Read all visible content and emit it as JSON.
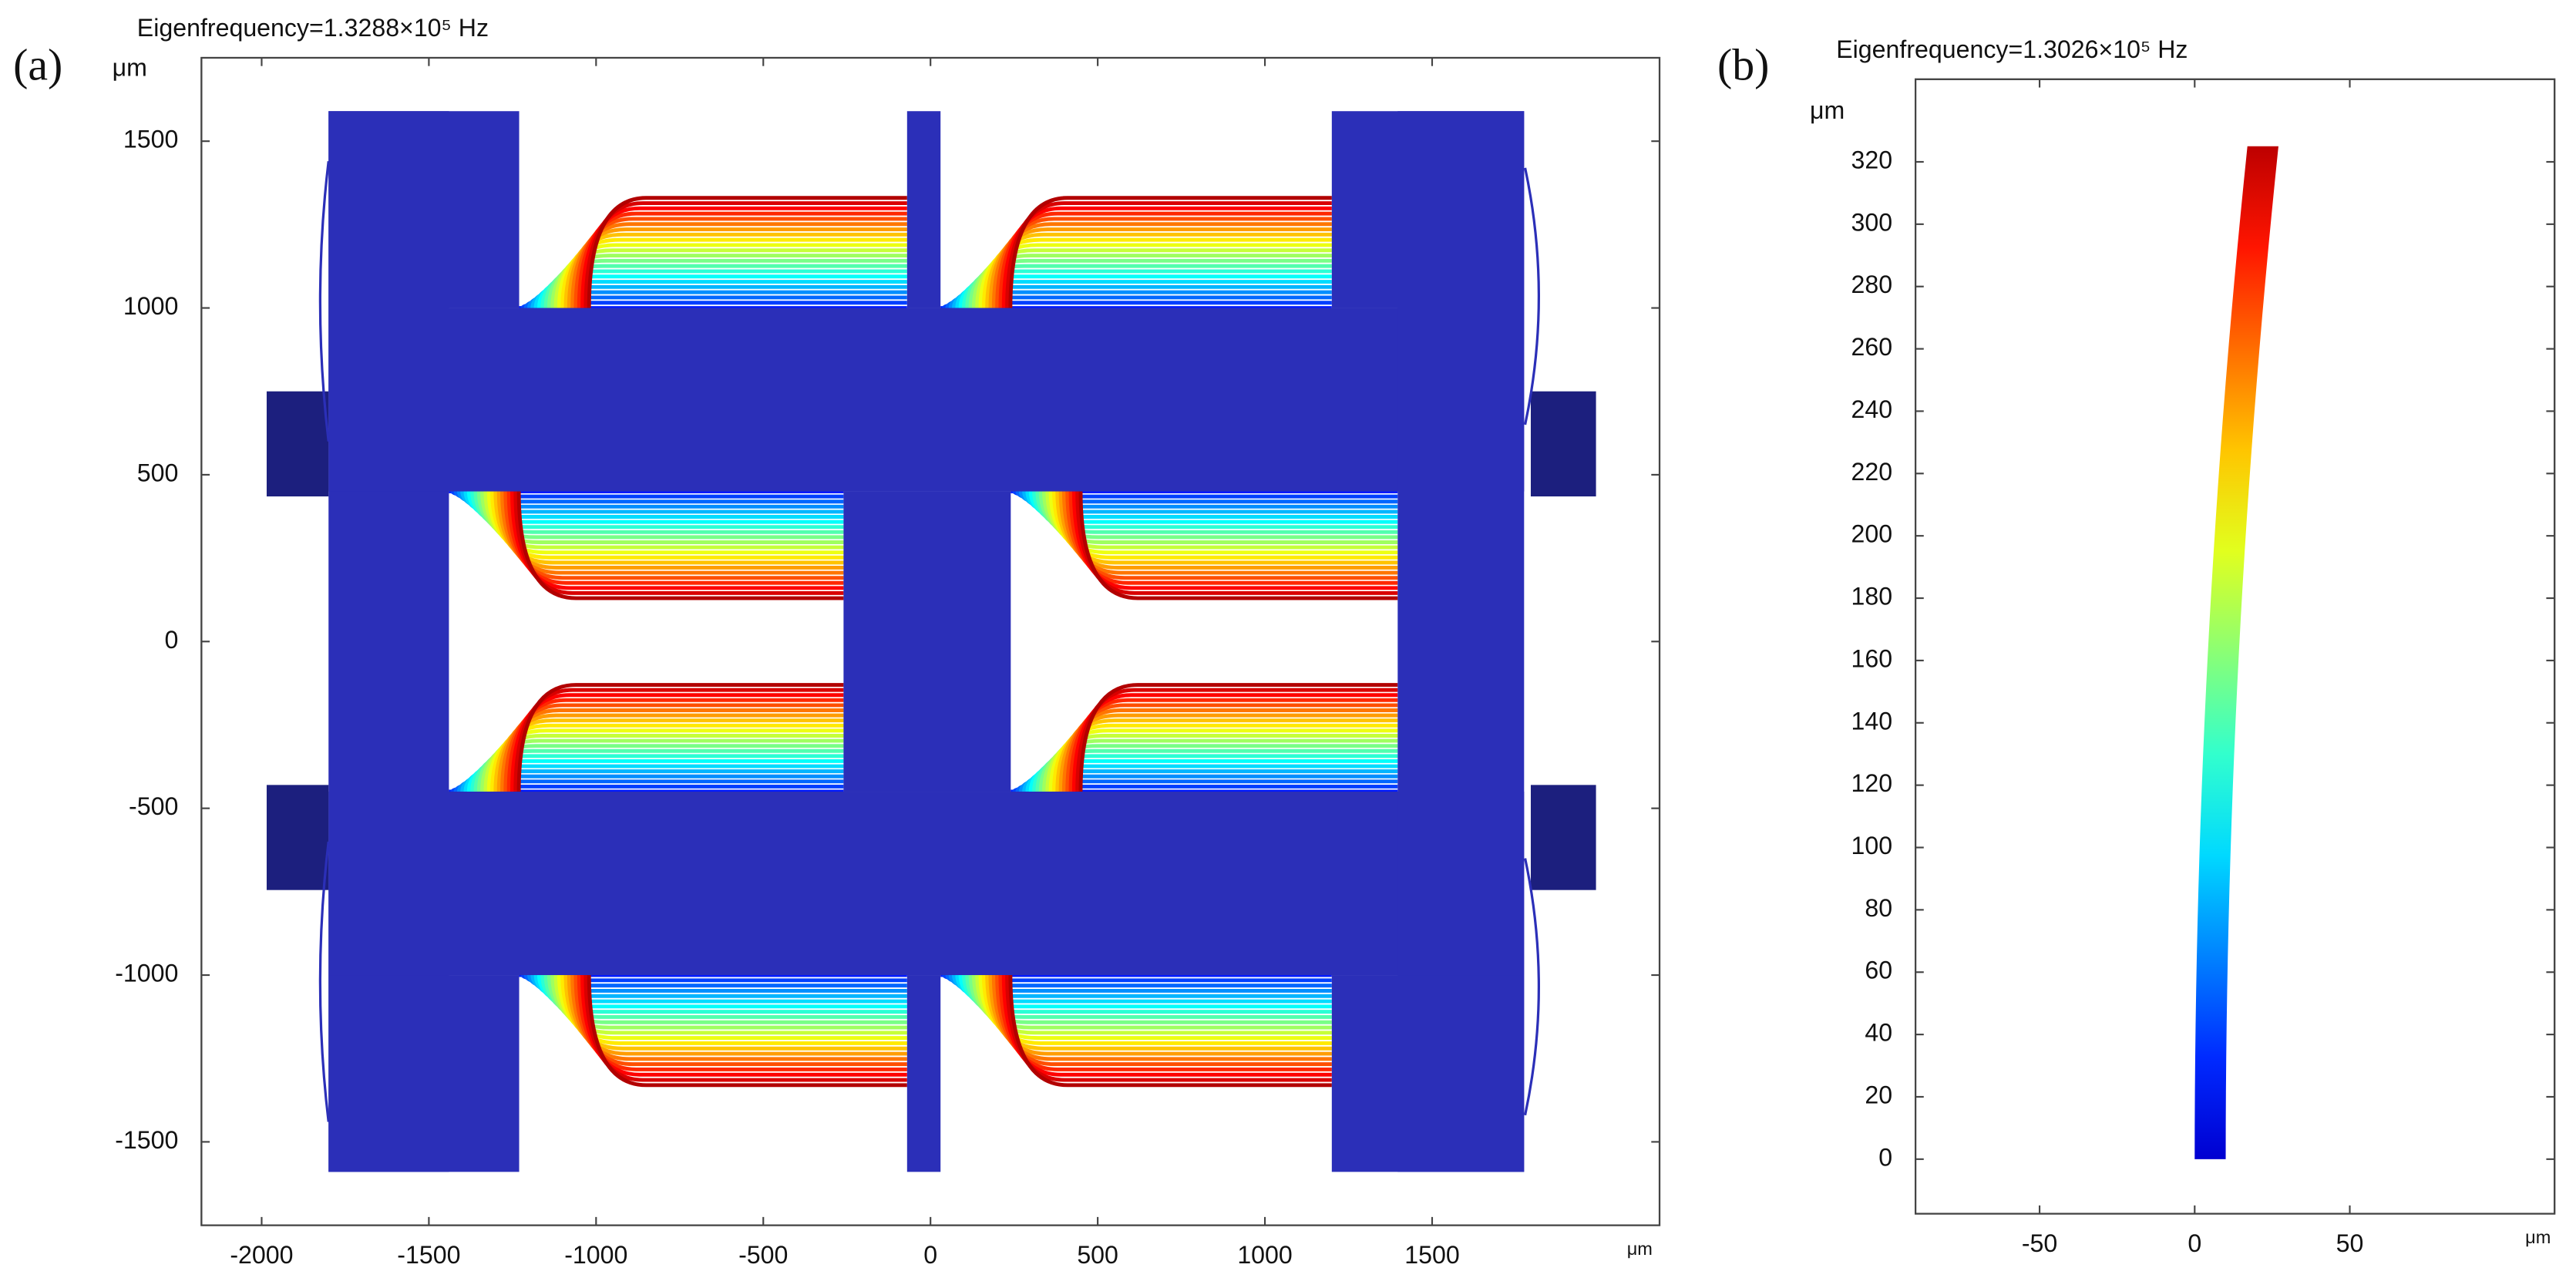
{
  "chart_data": [
    {
      "type": "surface",
      "panel_label": "(a)",
      "title": "Eigenfrequency=1.3288×10⁵ Hz",
      "y_unit": "μm",
      "x_unit": "μm",
      "xlim": [
        -2180,
        2180
      ],
      "ylim": [
        -1750,
        1750
      ],
      "xticks": [
        -2000,
        -1500,
        -1000,
        -500,
        0,
        500,
        1000,
        1500
      ],
      "yticks": [
        -1500,
        -1000,
        -500,
        0,
        500,
        1000,
        1500
      ]
    },
    {
      "type": "beam",
      "panel_label": "(b)",
      "title": "Eigenfrequency=1.3026×10⁵ Hz",
      "y_unit": "μm",
      "x_unit": "μm",
      "xlim": [
        -90,
        116
      ],
      "ylim": [
        -17.5,
        346.5
      ],
      "xticks": [
        -50,
        0,
        50
      ],
      "yticks": [
        0,
        20,
        40,
        60,
        80,
        100,
        120,
        140,
        160,
        180,
        200,
        220,
        240,
        260,
        280,
        300,
        320
      ]
    }
  ]
}
